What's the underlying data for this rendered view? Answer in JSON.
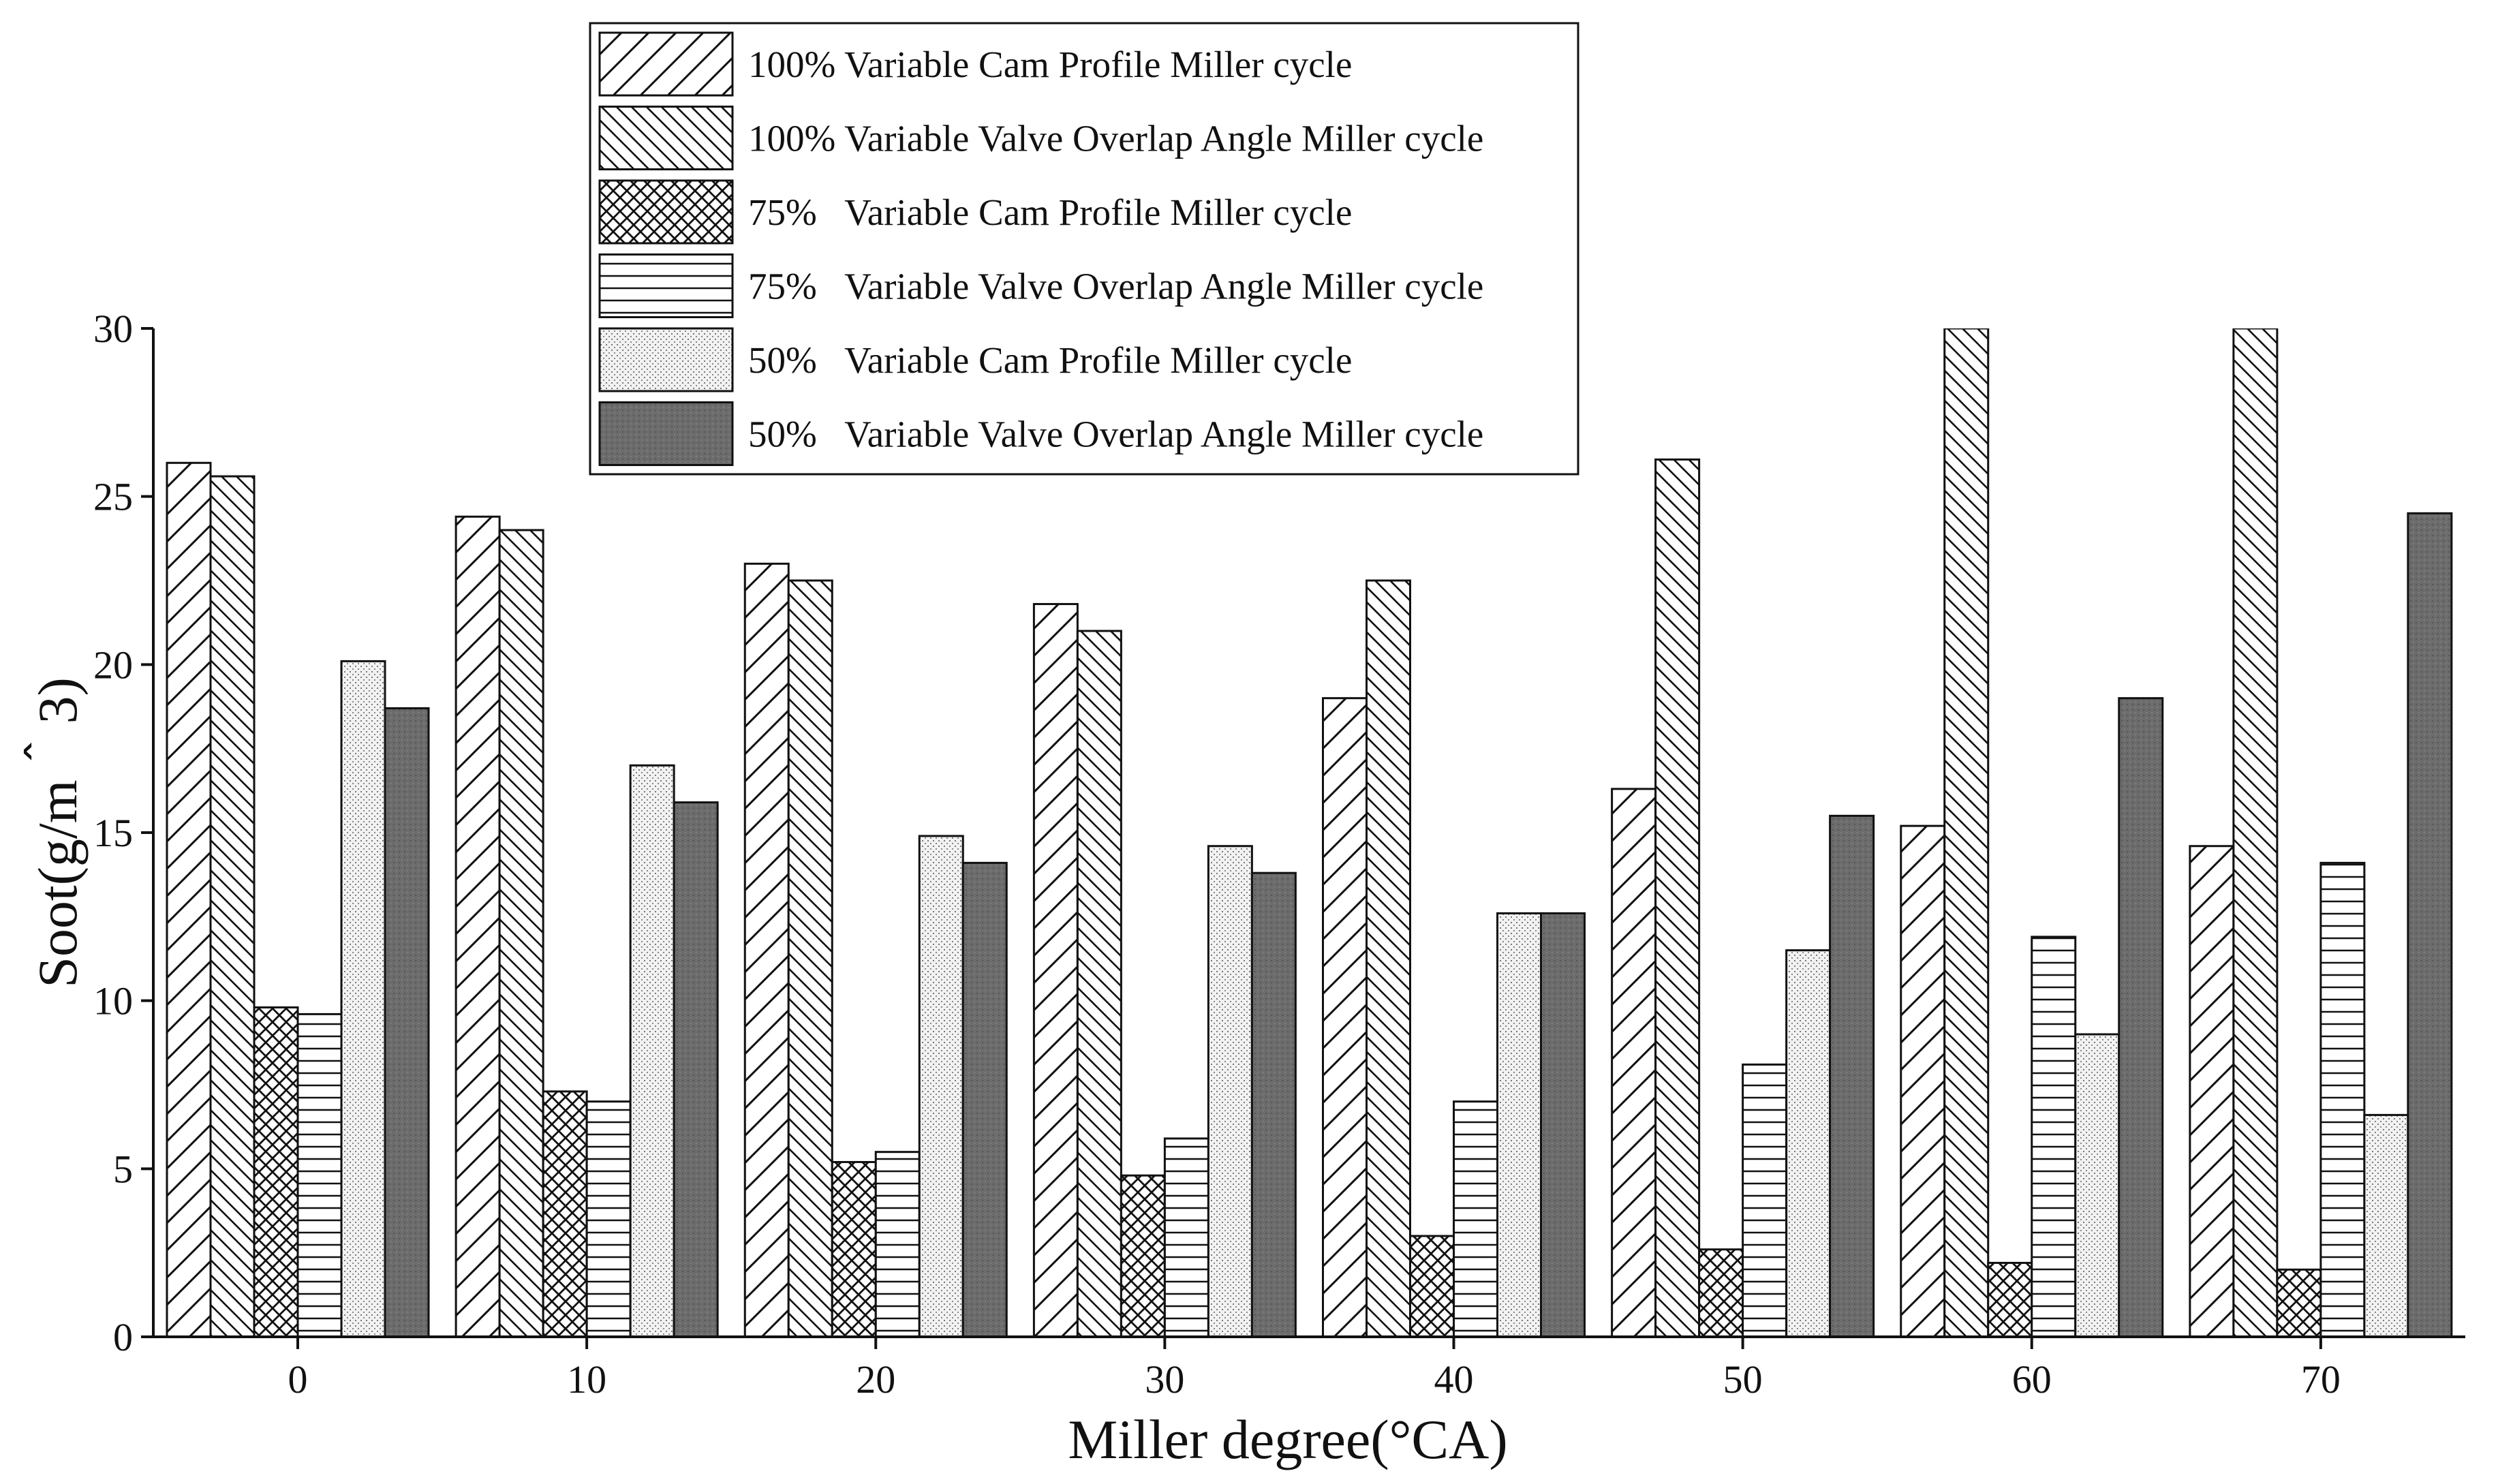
{
  "chart_data": {
    "type": "bar",
    "title": "",
    "xlabel": "Miller degree(°CA)",
    "ylabel": "Soot(g/m＾3)",
    "ylim": [
      0,
      30
    ],
    "yticks": [
      "0",
      "5",
      "10",
      "15",
      "20",
      "25",
      "30"
    ],
    "categories": [
      "0",
      "10",
      "20",
      "30",
      "40",
      "50",
      "60",
      "70"
    ],
    "legend_position": "top-center",
    "series": [
      {
        "name": "100% Variable Cam Profile Miller cycle",
        "pattern": "diag-up",
        "values": [
          26.0,
          24.4,
          23.0,
          21.8,
          19.0,
          16.3,
          15.2,
          14.6
        ]
      },
      {
        "name": "100% Variable Valve Overlap Angle Miller cycle",
        "pattern": "diag-down",
        "values": [
          25.6,
          24.0,
          22.5,
          21.0,
          22.5,
          26.1,
          30.0,
          30.0
        ]
      },
      {
        "name": "75%   Variable Cam Profile Miller cycle",
        "pattern": "crosshatch",
        "values": [
          9.8,
          7.3,
          5.2,
          4.8,
          3.0,
          2.6,
          2.2,
          2.0
        ]
      },
      {
        "name": "75%   Variable Valve Overlap Angle Miller cycle",
        "pattern": "horizontal",
        "values": [
          9.6,
          7.0,
          5.5,
          5.9,
          7.0,
          8.1,
          11.9,
          14.1
        ]
      },
      {
        "name": "50%   Variable Cam Profile Miller cycle",
        "pattern": "dots",
        "values": [
          20.1,
          17.0,
          14.9,
          14.6,
          12.6,
          11.5,
          9.0,
          6.6
        ]
      },
      {
        "name": "50%   Variable Valve Overlap Angle Miller cycle",
        "pattern": "dark",
        "values": [
          18.7,
          15.9,
          14.1,
          13.8,
          12.6,
          15.5,
          19.0,
          24.5
        ]
      }
    ]
  }
}
